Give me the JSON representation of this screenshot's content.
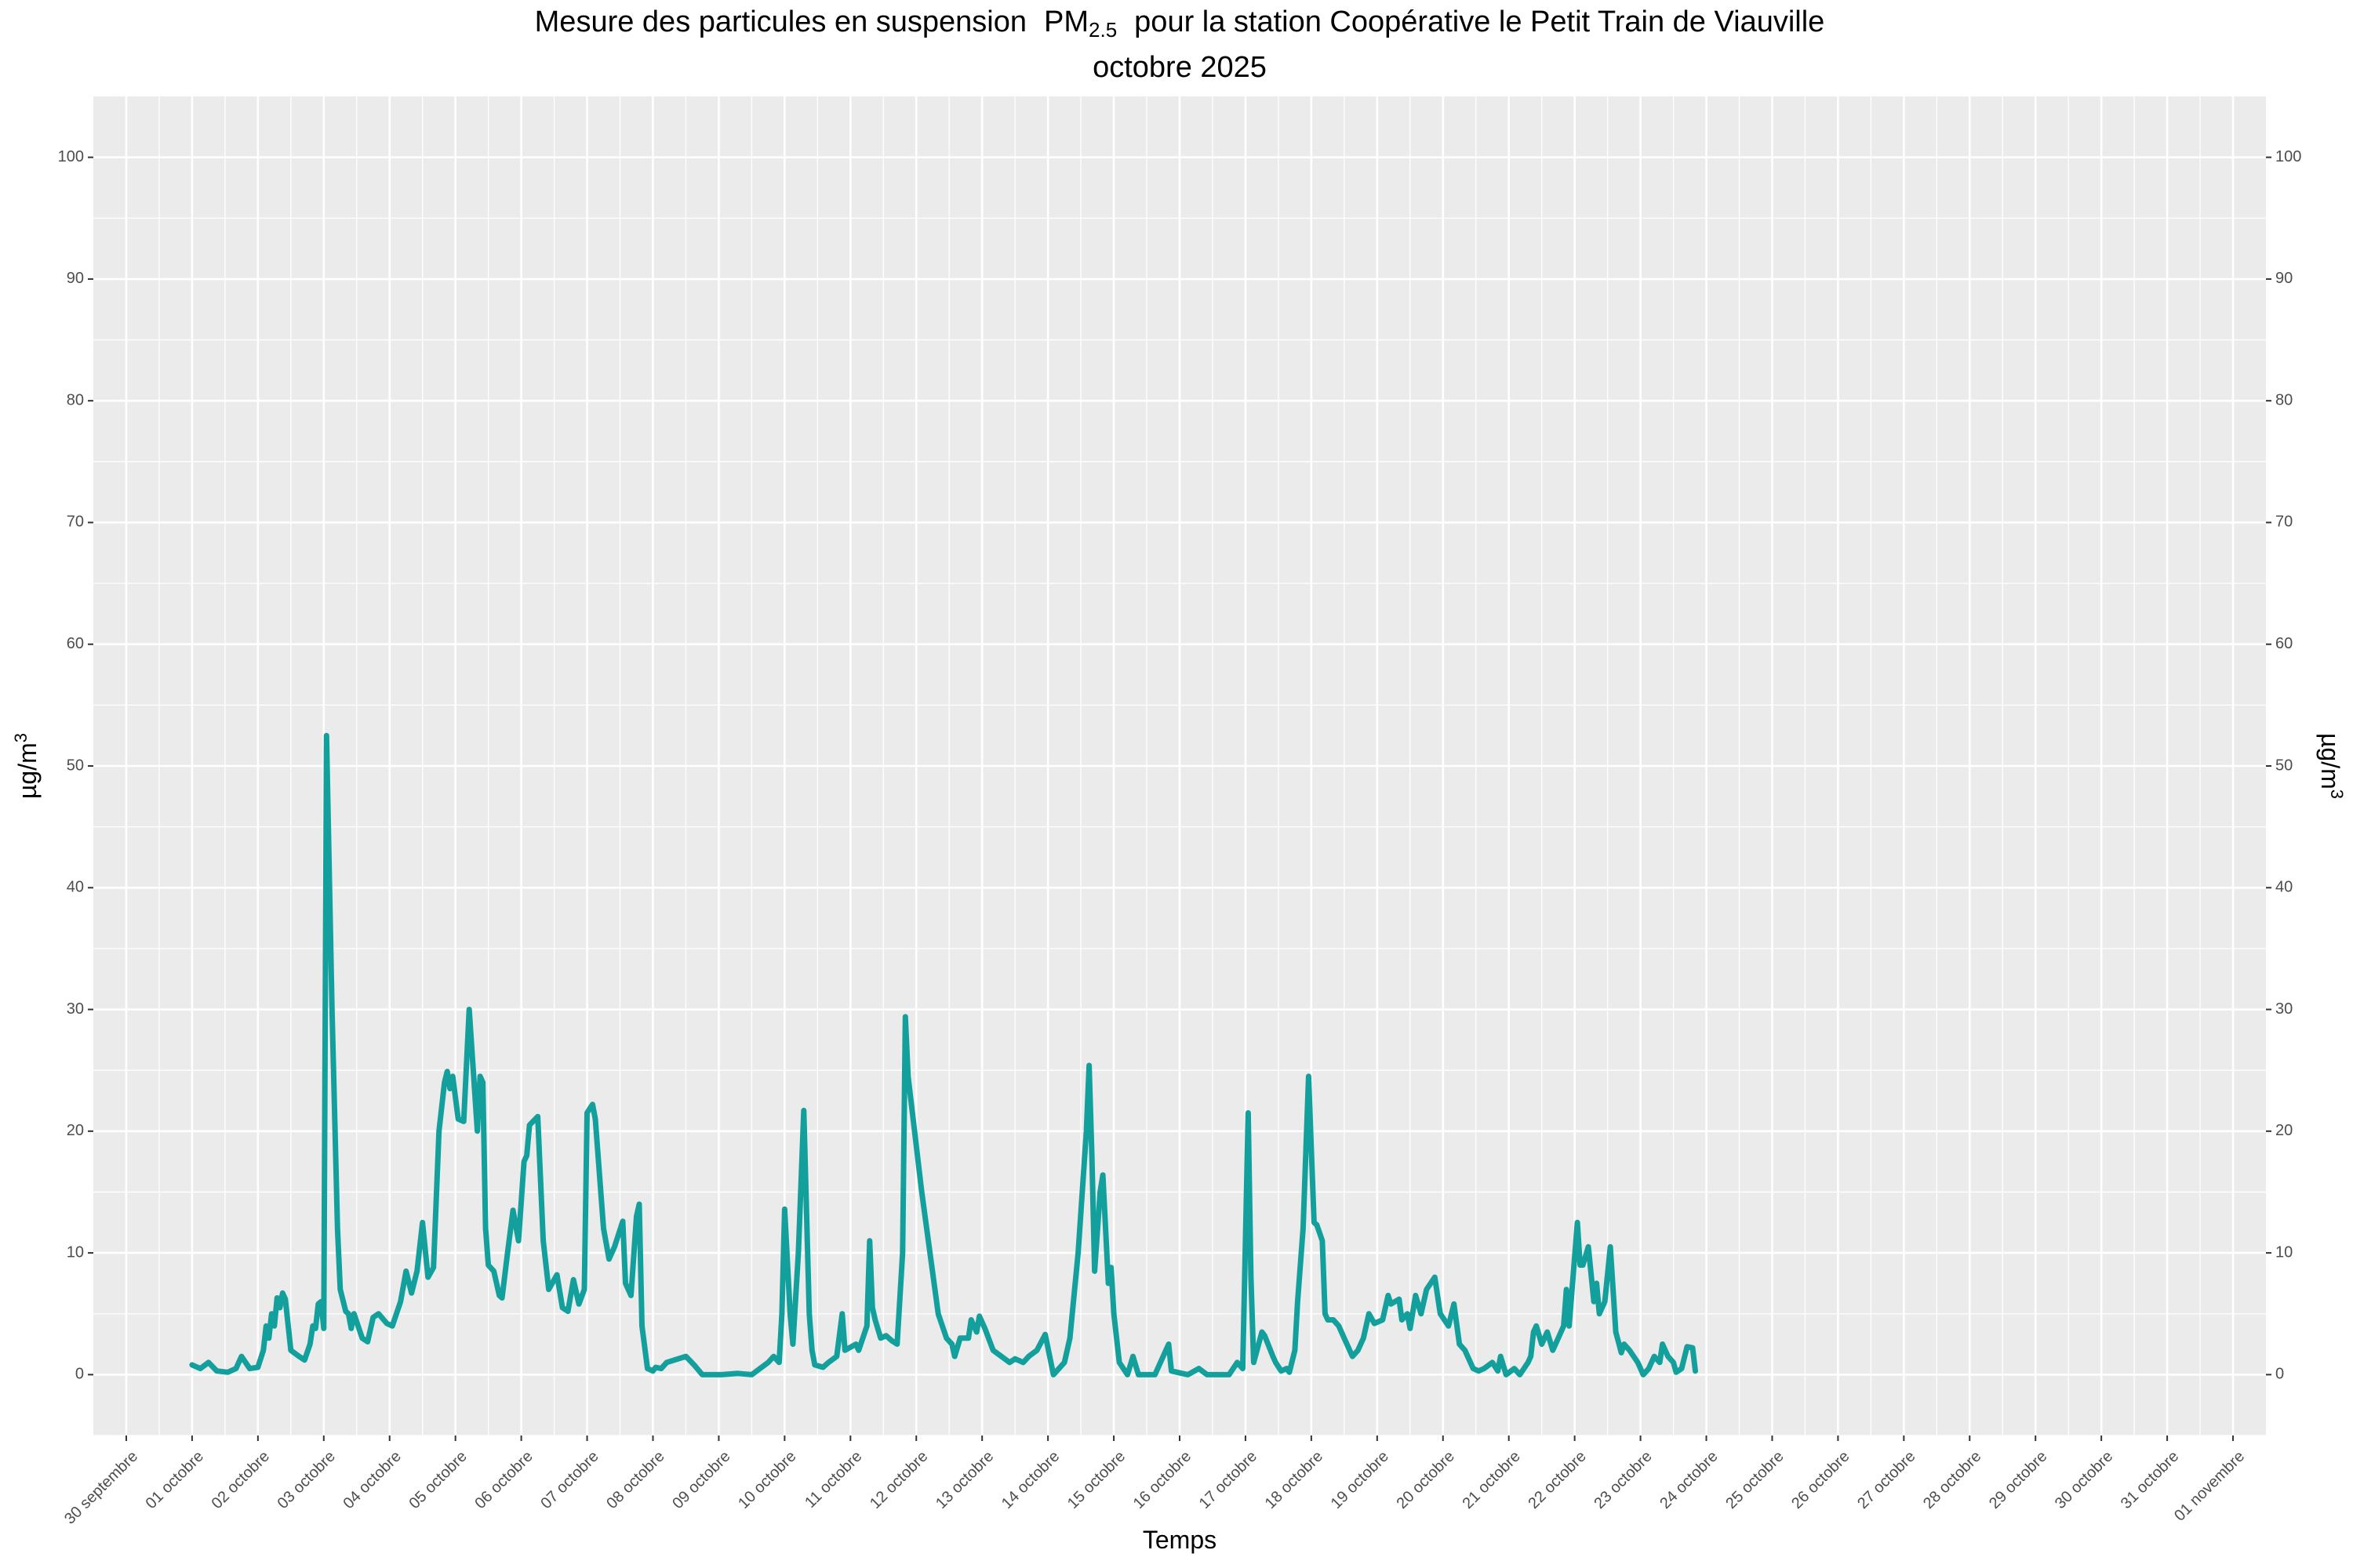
{
  "chart_data": {
    "type": "line",
    "title_prefix": "Mesure des particules en suspension",
    "title_pollutant": "PM",
    "title_subscript": "2.5",
    "title_suffix": "pour la station Coopérative le Petit Train de Viauville",
    "subtitle": "octobre 2025",
    "x_label": "Temps",
    "y_label": "µg/m",
    "y_label_superscript": "3",
    "color": "#13a09c",
    "grid": true,
    "secondary_axis": true,
    "xlim": [
      "2025-09-29T12:00",
      "2025-11-01T12:00"
    ],
    "xticks": [
      {
        "value": "2025-09-30T00:00",
        "label": "30 septembre"
      },
      {
        "value": "2025-10-01T00:00",
        "label": "01 octobre"
      },
      {
        "value": "2025-10-02T00:00",
        "label": "02 octobre"
      },
      {
        "value": "2025-10-03T00:00",
        "label": "03 octobre"
      },
      {
        "value": "2025-10-04T00:00",
        "label": "04 octobre"
      },
      {
        "value": "2025-10-05T00:00",
        "label": "05 octobre"
      },
      {
        "value": "2025-10-06T00:00",
        "label": "06 octobre"
      },
      {
        "value": "2025-10-07T00:00",
        "label": "07 octobre"
      },
      {
        "value": "2025-10-08T00:00",
        "label": "08 octobre"
      },
      {
        "value": "2025-10-09T00:00",
        "label": "09 octobre"
      },
      {
        "value": "2025-10-10T00:00",
        "label": "10 octobre"
      },
      {
        "value": "2025-10-11T00:00",
        "label": "11 octobre"
      },
      {
        "value": "2025-10-12T00:00",
        "label": "12 octobre"
      },
      {
        "value": "2025-10-13T00:00",
        "label": "13 octobre"
      },
      {
        "value": "2025-10-14T00:00",
        "label": "14 octobre"
      },
      {
        "value": "2025-10-15T00:00",
        "label": "15 octobre"
      },
      {
        "value": "2025-10-16T00:00",
        "label": "16 octobre"
      },
      {
        "value": "2025-10-17T00:00",
        "label": "17 octobre"
      },
      {
        "value": "2025-10-18T00:00",
        "label": "18 octobre"
      },
      {
        "value": "2025-10-19T00:00",
        "label": "19 octobre"
      },
      {
        "value": "2025-10-20T00:00",
        "label": "20 octobre"
      },
      {
        "value": "2025-10-21T00:00",
        "label": "21 octobre"
      },
      {
        "value": "2025-10-22T00:00",
        "label": "22 octobre"
      },
      {
        "value": "2025-10-23T00:00",
        "label": "23 octobre"
      },
      {
        "value": "2025-10-24T00:00",
        "label": "24 octobre"
      },
      {
        "value": "2025-10-25T00:00",
        "label": "25 octobre"
      },
      {
        "value": "2025-10-26T00:00",
        "label": "26 octobre"
      },
      {
        "value": "2025-10-27T00:00",
        "label": "27 octobre"
      },
      {
        "value": "2025-10-28T00:00",
        "label": "28 octobre"
      },
      {
        "value": "2025-10-29T00:00",
        "label": "29 octobre"
      },
      {
        "value": "2025-10-30T00:00",
        "label": "30 octobre"
      },
      {
        "value": "2025-10-31T00:00",
        "label": "31 octobre"
      },
      {
        "value": "2025-11-01T00:00",
        "label": "01 novembre"
      }
    ],
    "ylim": [
      -5,
      105
    ],
    "yticks": [
      0,
      10,
      20,
      30,
      40,
      50,
      60,
      70,
      80,
      90,
      100
    ],
    "x": [
      "2025-10-01T00:00",
      "2025-10-01T03:00",
      "2025-10-01T06:00",
      "2025-10-01T09:00",
      "2025-10-01T13:00",
      "2025-10-01T16:00",
      "2025-10-01T18:00",
      "2025-10-01T21:00",
      "2025-10-02T00:00",
      "2025-10-02T02:00",
      "2025-10-02T03:00",
      "2025-10-02T04:00",
      "2025-10-02T05:00",
      "2025-10-02T06:00",
      "2025-10-02T07:00",
      "2025-10-02T08:00",
      "2025-10-02T09:00",
      "2025-10-02T10:00",
      "2025-10-02T12:00",
      "2025-10-02T15:00",
      "2025-10-02T17:00",
      "2025-10-02T19:00",
      "2025-10-02T20:00",
      "2025-10-02T21:00",
      "2025-10-02T22:00",
      "2025-10-02T23:00",
      "2025-10-03T00:00",
      "2025-10-03T01:00",
      "2025-10-03T03:00",
      "2025-10-03T05:00",
      "2025-10-03T06:00",
      "2025-10-03T08:00",
      "2025-10-03T09:00",
      "2025-10-03T10:00",
      "2025-10-03T11:00",
      "2025-10-03T14:00",
      "2025-10-03T16:00",
      "2025-10-03T18:00",
      "2025-10-03T20:00",
      "2025-10-03T23:00",
      "2025-10-04T01:00",
      "2025-10-04T04:00",
      "2025-10-04T06:00",
      "2025-10-04T08:00",
      "2025-10-04T10:00",
      "2025-10-04T12:00",
      "2025-10-04T14:00",
      "2025-10-04T16:00",
      "2025-10-04T18:00",
      "2025-10-04T20:00",
      "2025-10-04T21:00",
      "2025-10-04T22:00",
      "2025-10-04T23:00",
      "2025-10-05T01:00",
      "2025-10-05T03:00",
      "2025-10-05T05:00",
      "2025-10-05T08:00",
      "2025-10-05T09:00",
      "2025-10-05T10:00",
      "2025-10-05T11:00",
      "2025-10-05T12:00",
      "2025-10-05T14:00",
      "2025-10-05T16:00",
      "2025-10-05T17:00",
      "2025-10-05T19:00",
      "2025-10-05T21:00",
      "2025-10-05T23:00",
      "2025-10-06T01:00",
      "2025-10-06T02:00",
      "2025-10-06T03:00",
      "2025-10-06T06:00",
      "2025-10-06T08:00",
      "2025-10-06T10:00",
      "2025-10-06T13:00",
      "2025-10-06T15:00",
      "2025-10-06T17:00",
      "2025-10-06T19:00",
      "2025-10-06T21:00",
      "2025-10-06T23:00",
      "2025-10-07T00:00",
      "2025-10-07T02:00",
      "2025-10-07T03:00",
      "2025-10-07T06:00",
      "2025-10-07T08:00",
      "2025-10-07T10:00",
      "2025-10-07T13:00",
      "2025-10-07T14:00",
      "2025-10-07T16:00",
      "2025-10-07T18:00",
      "2025-10-07T19:00",
      "2025-10-07T20:00",
      "2025-10-07T22:00",
      "2025-10-08T00:00",
      "2025-10-08T01:00",
      "2025-10-08T03:00",
      "2025-10-08T05:00",
      "2025-10-08T12:00",
      "2025-10-08T15:00",
      "2025-10-08T18:00",
      "2025-10-09T01:00",
      "2025-10-09T07:00",
      "2025-10-09T12:00",
      "2025-10-09T18:00",
      "2025-10-09T20:00",
      "2025-10-09T22:00",
      "2025-10-09T23:00",
      "2025-10-10T00:00",
      "2025-10-10T02:00",
      "2025-10-10T03:00",
      "2025-10-10T05:00",
      "2025-10-10T07:00",
      "2025-10-10T09:00",
      "2025-10-10T10:00",
      "2025-10-10T11:00",
      "2025-10-10T14:00",
      "2025-10-10T16:00",
      "2025-10-10T19:00",
      "2025-10-10T21:00",
      "2025-10-10T22:00",
      "2025-10-11T02:00",
      "2025-10-11T03:00",
      "2025-10-11T06:00",
      "2025-10-11T07:00",
      "2025-10-11T08:00",
      "2025-10-11T09:00",
      "2025-10-11T11:00",
      "2025-10-11T13:00",
      "2025-10-11T15:00",
      "2025-10-11T17:00",
      "2025-10-11T19:00",
      "2025-10-11T20:00",
      "2025-10-11T21:00",
      "2025-10-12T02:00",
      "2025-10-12T08:00",
      "2025-10-12T11:00",
      "2025-10-12T13:00",
      "2025-10-12T14:00",
      "2025-10-12T16:00",
      "2025-10-12T19:00",
      "2025-10-12T20:00",
      "2025-10-12T22:00",
      "2025-10-12T23:00",
      "2025-10-13T01:00",
      "2025-10-13T04:00",
      "2025-10-13T07:00",
      "2025-10-13T10:00",
      "2025-10-13T12:00",
      "2025-10-13T15:00",
      "2025-10-13T17:00",
      "2025-10-13T20:00",
      "2025-10-13T23:00",
      "2025-10-14T02:00",
      "2025-10-14T04:00",
      "2025-10-14T06:00",
      "2025-10-14T08:00",
      "2025-10-14T11:00",
      "2025-10-14T14:00",
      "2025-10-14T15:00",
      "2025-10-14T16:00",
      "2025-10-14T17:00",
      "2025-10-14T19:00",
      "2025-10-14T20:00",
      "2025-10-14T22:00",
      "2025-10-14T23:00",
      "2025-10-15T00:00",
      "2025-10-15T02:00",
      "2025-10-15T05:00",
      "2025-10-15T07:00",
      "2025-10-15T09:00",
      "2025-10-15T15:00",
      "2025-10-15T19:00",
      "2025-10-15T20:00",
      "2025-10-15T21:00",
      "2025-10-16T03:00",
      "2025-10-16T07:00",
      "2025-10-16T10:00",
      "2025-10-16T18:00",
      "2025-10-16T21:00",
      "2025-10-16T23:00",
      "2025-10-17T01:00",
      "2025-10-17T02:00",
      "2025-10-17T03:00",
      "2025-10-17T06:00",
      "2025-10-17T07:00",
      "2025-10-17T10:00",
      "2025-10-17T11:00",
      "2025-10-17T13:00",
      "2025-10-17T15:00",
      "2025-10-17T16:00",
      "2025-10-17T18:00",
      "2025-10-17T19:00",
      "2025-10-17T21:00",
      "2025-10-17T23:00",
      "2025-10-18T01:00",
      "2025-10-18T02:00",
      "2025-10-18T04:00",
      "2025-10-18T05:00",
      "2025-10-18T06:00",
      "2025-10-18T08:00",
      "2025-10-18T10:00",
      "2025-10-18T12:00",
      "2025-10-18T15:00",
      "2025-10-18T17:00",
      "2025-10-18T19:00",
      "2025-10-18T21:00",
      "2025-10-18T23:00",
      "2025-10-19T02:00",
      "2025-10-19T04:00",
      "2025-10-19T05:00",
      "2025-10-19T08:00",
      "2025-10-19T09:00",
      "2025-10-19T11:00",
      "2025-10-19T12:00",
      "2025-10-19T14:00",
      "2025-10-19T16:00",
      "2025-10-19T18:00",
      "2025-10-19T21:00",
      "2025-10-19T23:00",
      "2025-10-20T02:00",
      "2025-10-20T04:00",
      "2025-10-20T06:00",
      "2025-10-20T08:00",
      "2025-10-20T11:00",
      "2025-10-20T13:00",
      "2025-10-20T15:00",
      "2025-10-20T18:00",
      "2025-10-20T20:00",
      "2025-10-20T21:00",
      "2025-10-20T23:00",
      "2025-10-21T02:00",
      "2025-10-21T04:00",
      "2025-10-21T07:00",
      "2025-10-21T08:00",
      "2025-10-21T09:00",
      "2025-10-21T10:00",
      "2025-10-21T12:00",
      "2025-10-21T14:00",
      "2025-10-21T16:00",
      "2025-10-21T18:00",
      "2025-10-21T20:00",
      "2025-10-21T21:00",
      "2025-10-21T22:00",
      "2025-10-22T01:00",
      "2025-10-22T02:00",
      "2025-10-22T03:00",
      "2025-10-22T05:00",
      "2025-10-22T07:00",
      "2025-10-22T08:00",
      "2025-10-22T09:00",
      "2025-10-22T11:00",
      "2025-10-22T13:00",
      "2025-10-22T15:00",
      "2025-10-22T17:00",
      "2025-10-22T18:00",
      "2025-10-22T20:00",
      "2025-10-22T23:00",
      "2025-10-23T00:00",
      "2025-10-23T01:00",
      "2025-10-23T03:00",
      "2025-10-23T05:00",
      "2025-10-23T07:00",
      "2025-10-23T08:00",
      "2025-10-23T10:00",
      "2025-10-23T12:00",
      "2025-10-23T13:00",
      "2025-10-23T15:00",
      "2025-10-23T17:00",
      "2025-10-23T19:00",
      "2025-10-23T20:00"
    ],
    "values": [
      0.8,
      0.5,
      1,
      0.3,
      0.2,
      0.5,
      1.5,
      0.5,
      0.6,
      2,
      4,
      3,
      5,
      4,
      6.3,
      5.5,
      6.7,
      6.2,
      2,
      1.5,
      1.2,
      2.5,
      4,
      3.8,
      5.8,
      6,
      3.8,
      52.5,
      30,
      12,
      7,
      5.2,
      5,
      3.8,
      5,
      3,
      2.7,
      4.7,
      5,
      4.2,
      4,
      6,
      8.5,
      6.7,
      8.5,
      12.5,
      8,
      8.8,
      20,
      24,
      24.9,
      23.5,
      24.5,
      21,
      20.8,
      30,
      20,
      24.5,
      24,
      12,
      9,
      8.5,
      6.5,
      6.3,
      10,
      13.5,
      11,
      17.5,
      18,
      20.5,
      21.2,
      11,
      7,
      8.2,
      5.5,
      5.2,
      7.8,
      5.8,
      7,
      21.5,
      22.2,
      21,
      12,
      9.5,
      10.5,
      12.6,
      7.5,
      6.5,
      13,
      14,
      4,
      0.5,
      0.3,
      0.6,
      0.5,
      1,
      1.5,
      0.8,
      0,
      0,
      0.1,
      0,
      1,
      1.5,
      1,
      5,
      13.6,
      5,
      2.5,
      10,
      21.7,
      5,
      2,
      0.8,
      0.6,
      1,
      1.5,
      5,
      2,
      2.5,
      2,
      4,
      11,
      5.5,
      4.5,
      3,
      3.2,
      2.8,
      2.5,
      10,
      29.4,
      24.5,
      15,
      5,
      3,
      2.5,
      1.5,
      3,
      3,
      4.5,
      3.5,
      4.8,
      3.8,
      2,
      1.5,
      1,
      1.3,
      1,
      1.5,
      2,
      3.3,
      0,
      0.5,
      1,
      3,
      10,
      20,
      25.4,
      18,
      8.5,
      15,
      16.4,
      7.5,
      8.8,
      5,
      1,
      0,
      1.5,
      0,
      0,
      2,
      2.5,
      0.3,
      0,
      0.5,
      0,
      0,
      1,
      0.5,
      21.5,
      8,
      1,
      3.5,
      3.2,
      1.5,
      1,
      0.3,
      0.5,
      0.2,
      2,
      6,
      12,
      24.5,
      12.5,
      12.3,
      11,
      5,
      4.5,
      4.5,
      4,
      3,
      1.5,
      2,
      3,
      5,
      4.2,
      4.5,
      6.5,
      5.8,
      6.2,
      4.5,
      5,
      3.8,
      6.5,
      5,
      7,
      8,
      5,
      4,
      5.8,
      2.5,
      2,
      0.5,
      0.3,
      0.5,
      1,
      0.3,
      1.5,
      0,
      0.5,
      0,
      1,
      1.5,
      3.5,
      4,
      2.5,
      3.5,
      2,
      3,
      4,
      7,
      4,
      12.5,
      9,
      9,
      10.5,
      6,
      7.5,
      5,
      6,
      10.5,
      3.5,
      1.8,
      2.5,
      2,
      1,
      0.5,
      0,
      0.5,
      1.5,
      1,
      2.5,
      1.5,
      1,
      0.2,
      0.5,
      2.3,
      2.2,
      0.3
    ]
  }
}
